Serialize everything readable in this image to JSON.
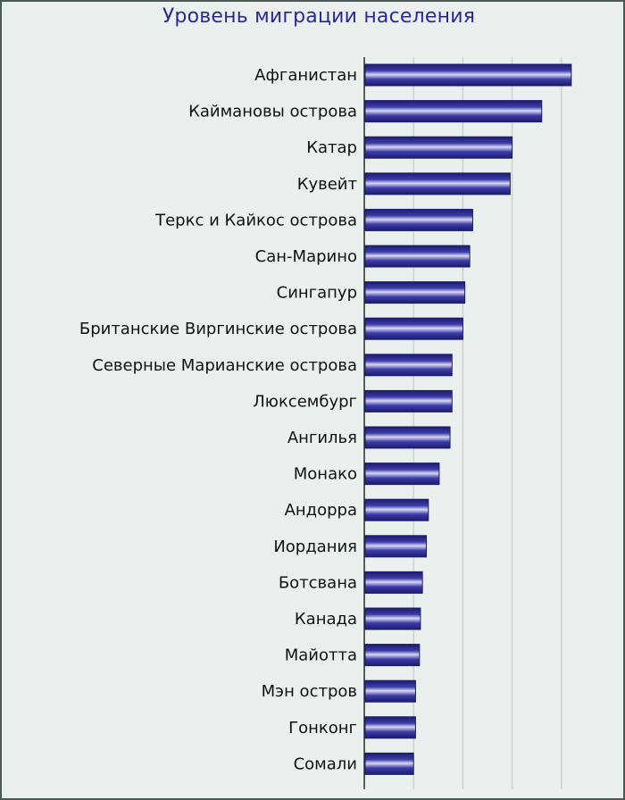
{
  "chart_data": {
    "type": "bar",
    "orientation": "horizontal",
    "title": "Уровень миграции населения",
    "xlabel": "",
    "ylabel": "",
    "categories": [
      "Афганистан",
      "Каймановы острова",
      "Катар",
      "Кувейт",
      "Теркс и Кайкос острова",
      "Сан-Марино",
      "Сингапур",
      "Британские Виргинские острова",
      "Северные Марианские острова",
      "Люксембург",
      "Ангилья",
      "Монако",
      "Андорра",
      "Иордания",
      "Ботсвана",
      "Канада",
      "Майотта",
      "Мэн остров",
      "Гонконг",
      "Сомали"
    ],
    "values": [
      21,
      18,
      15,
      14.8,
      11,
      10.7,
      10.2,
      10,
      8.9,
      8.9,
      8.7,
      7.6,
      6.5,
      6.3,
      5.9,
      5.7,
      5.6,
      5.2,
      5.2,
      5
    ],
    "xlim": [
      0,
      25
    ],
    "grid": true,
    "legend": "none",
    "colors": {
      "bar_dark": "#1c1c6e",
      "bar_mid": "#3c3ca8",
      "bar_light": "#d8d8f4",
      "grid": "#c9d2cf",
      "axis": "#2a2a2a"
    }
  }
}
